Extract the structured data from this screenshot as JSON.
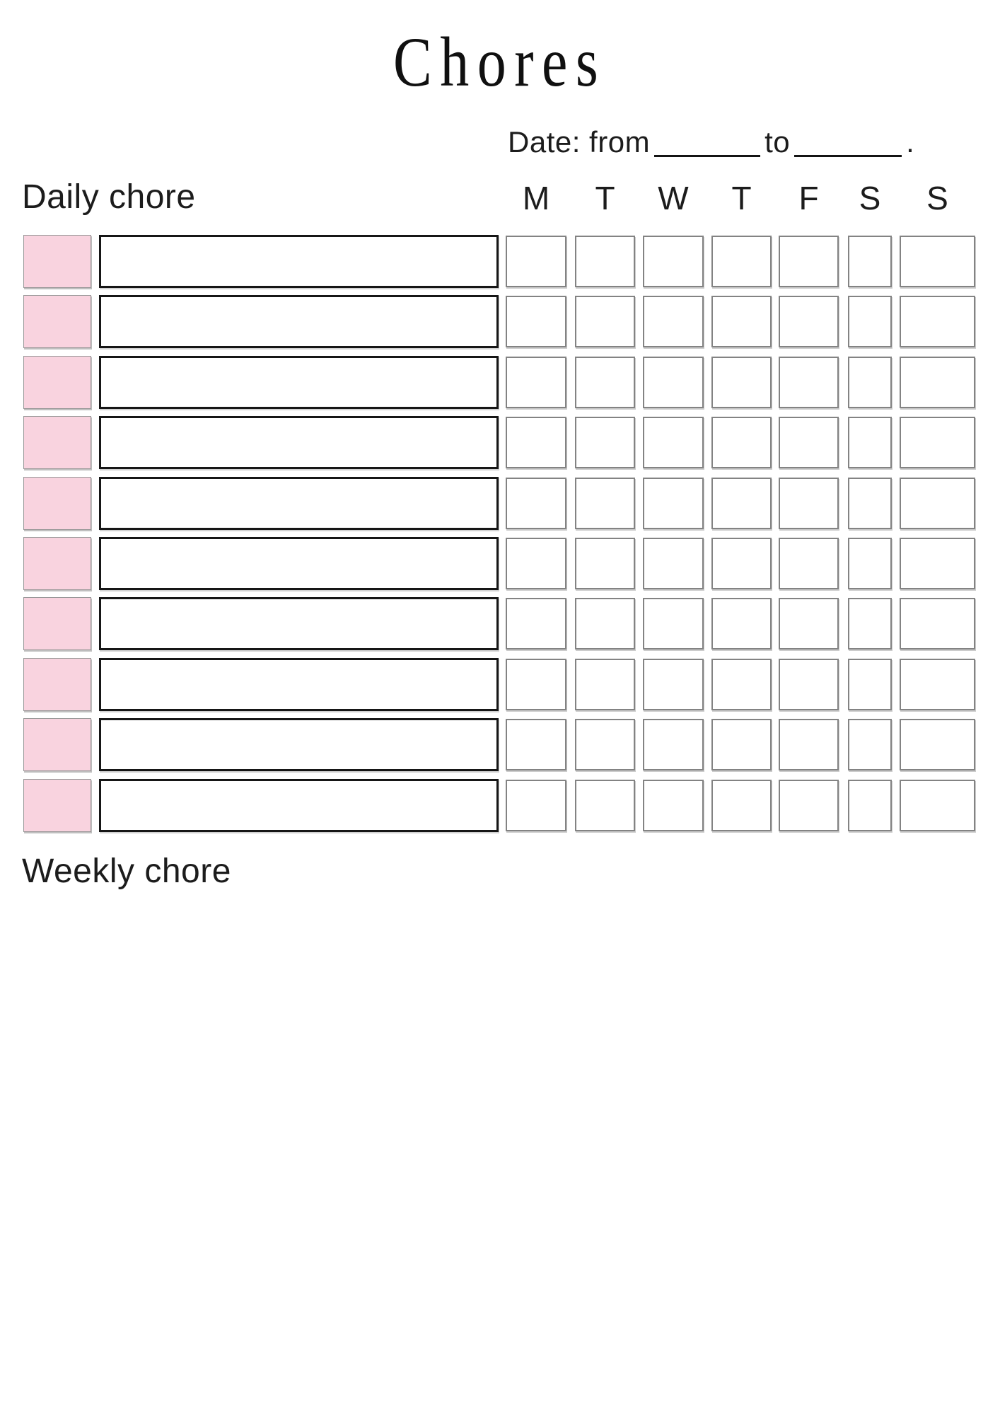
{
  "page": {
    "title": "Chores"
  },
  "date_line": {
    "from_label": "Date: from",
    "to_label": "to",
    "period": ".",
    "from_value": "",
    "to_value": ""
  },
  "daily": {
    "heading": "Daily chore",
    "day_headers": [
      "M",
      "T",
      "W",
      "T",
      "F",
      "S",
      "S"
    ],
    "row_count": 10,
    "chores": [
      "",
      "",
      "",
      "",
      "",
      "",
      "",
      "",
      "",
      ""
    ],
    "checks_state": "all-unchecked"
  },
  "weekly": {
    "heading": "Weekly chore",
    "columns": 2,
    "rows_per_column": 7,
    "chores_left": [
      "",
      "",
      "",
      "",
      "",
      "",
      ""
    ],
    "chores_right": [
      "",
      "",
      "",
      "",
      "",
      "",
      ""
    ],
    "checks_state": "all-unchecked"
  },
  "colors": {
    "pink": "#f9d3df",
    "ink": "#1c1c1c",
    "box_border": "#161616",
    "checkbox_border": "#838383"
  }
}
